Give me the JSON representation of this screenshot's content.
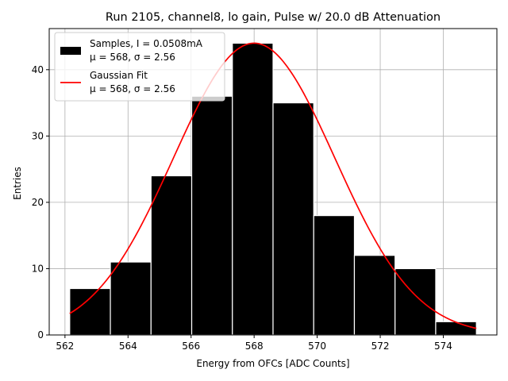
{
  "chart_data": {
    "type": "bar",
    "title": "Run 2105, channel8, lo gain, Pulse w/ 20.0 dB Attenuation",
    "xlabel": "Energy from OFCs [ADC Counts]",
    "ylabel": "Entries",
    "xlim": [
      561.5,
      575.7
    ],
    "ylim": [
      0,
      46.2
    ],
    "grid": true,
    "xticks": [
      562,
      564,
      566,
      568,
      570,
      572,
      574
    ],
    "yticks": [
      0,
      10,
      20,
      30,
      40
    ],
    "bin_edges": [
      562.15,
      563.44,
      564.73,
      566.02,
      567.31,
      568.6,
      569.89,
      571.18,
      572.47,
      573.76,
      575.05
    ],
    "counts": [
      7,
      11,
      24,
      36,
      44,
      35,
      18,
      12,
      10,
      2
    ],
    "fit": {
      "type": "gaussian",
      "mu": 568.0,
      "sigma": 2.56,
      "amplitude": 44.0,
      "x_range": [
        562.15,
        575.05
      ]
    },
    "colors": {
      "bars": "#000000",
      "bar_edge": "#ffffff",
      "fit": "#ff0000",
      "grid": "#b0b0b0"
    },
    "legend": {
      "position": "upper-left",
      "entries": [
        {
          "line1": "Samples, I = 0.0508mA",
          "line2": "μ = 568, σ = 2.56"
        },
        {
          "line1": "Gaussian Fit",
          "line2": "μ = 568, σ = 2.56"
        }
      ]
    }
  }
}
